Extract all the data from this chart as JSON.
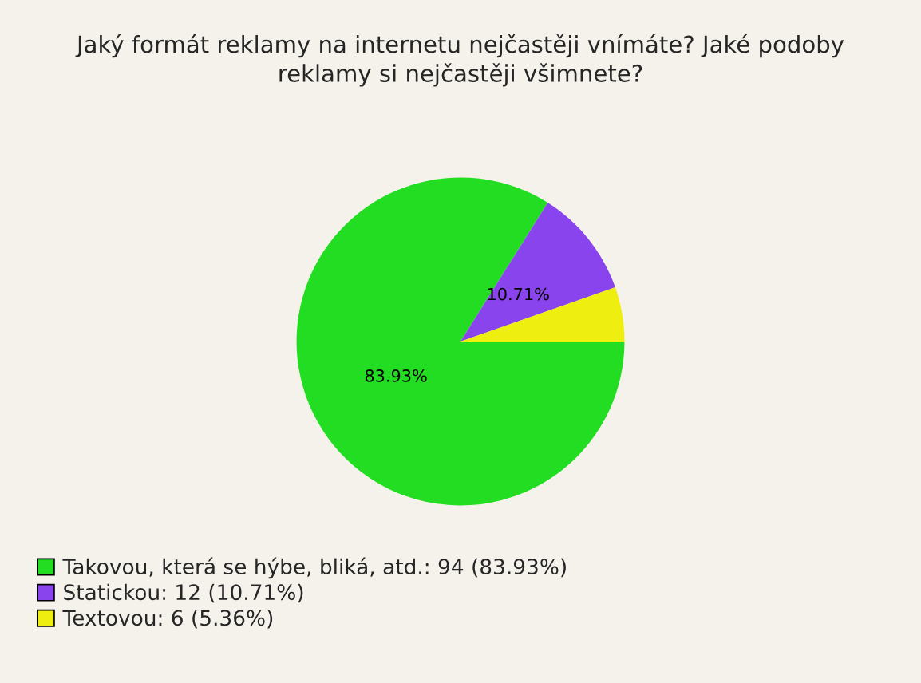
{
  "chart_data": {
    "type": "pie",
    "title": "Jaký formát reklamy na internetu nejčastěji vnímáte? Jaké podoby\nreklamy si nejčastěji všimnete?",
    "categories": [
      "Takovou, která se hýbe, bliká, atd.: 94 (83.93%)",
      "Statickou: 12 (10.71%)",
      "Textovou: 6 (5.36%)"
    ],
    "values": [
      83.93,
      10.71,
      5.36
    ],
    "colors": [
      "#22dd22",
      "#8a44ee",
      "#eeee11"
    ],
    "value_labels": [
      "83.93%",
      "10.71%",
      null
    ],
    "legend": "bottom left"
  }
}
